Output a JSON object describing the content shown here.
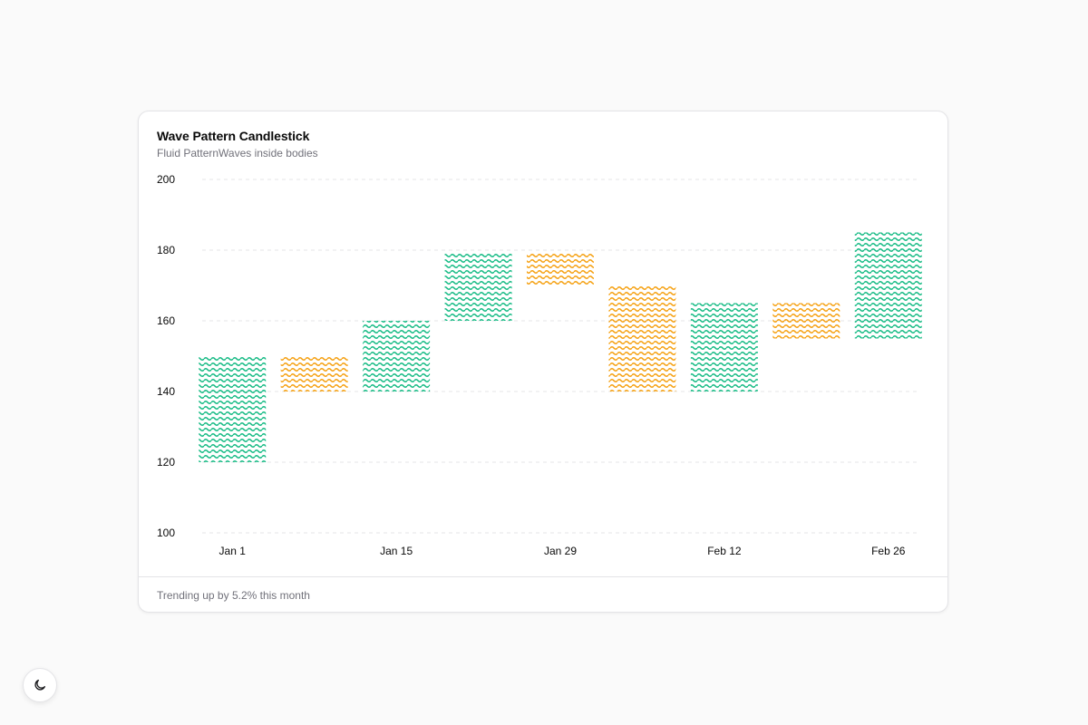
{
  "card": {
    "title": "Wave Pattern Candlestick",
    "subtitle": "Fluid PatternWaves inside bodies",
    "footer": "Trending up by 5.2% this month"
  },
  "theme_toggle": {
    "icon": "moon-icon"
  },
  "colors": {
    "up": "#10b981",
    "down": "#f59e0b",
    "grid": "#e4e4e7",
    "axis_text": "#0a0a0a"
  },
  "chart_data": {
    "type": "candlestick",
    "title": "Wave Pattern Candlestick",
    "subtitle": "Fluid PatternWaves inside bodies",
    "ylim": [
      100,
      200
    ],
    "yticks": [
      100,
      120,
      140,
      160,
      180,
      200
    ],
    "grid": true,
    "xtick_labels": [
      "Jan 1",
      "Jan 15",
      "Jan 29",
      "Feb 12",
      "Feb 26"
    ],
    "candles": [
      {
        "open": 120,
        "close": 150,
        "direction": "up"
      },
      {
        "open": 150,
        "close": 140,
        "direction": "down"
      },
      {
        "open": 140,
        "close": 160,
        "direction": "up"
      },
      {
        "open": 160,
        "close": 179,
        "direction": "up"
      },
      {
        "open": 179,
        "close": 170,
        "direction": "down"
      },
      {
        "open": 170,
        "close": 140,
        "direction": "down"
      },
      {
        "open": 140,
        "close": 165,
        "direction": "up"
      },
      {
        "open": 165,
        "close": 155,
        "direction": "down"
      },
      {
        "open": 155,
        "close": 185,
        "direction": "up"
      }
    ]
  }
}
